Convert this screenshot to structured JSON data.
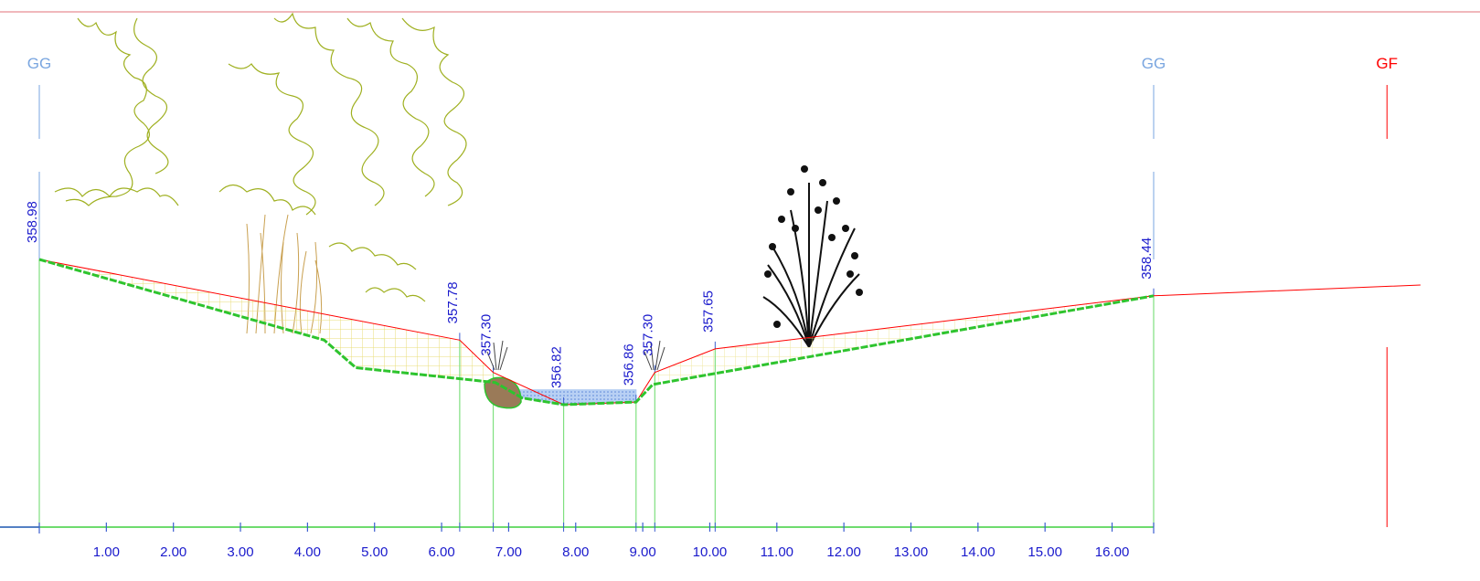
{
  "diagram": {
    "type": "river cross-section",
    "colors": {
      "frame_line": "#e0707a",
      "gg_marker": "#7aa6e0",
      "gf_marker": "#ff0000",
      "terrain_line": "#ff0000",
      "design_line": "#2ec42e",
      "station_lines": "#7fe07f",
      "elevation_text": "#1a1acc",
      "axis_text": "#1a1acc",
      "axis_line": "#3fcf3f",
      "water_fill": "#a9c6f0",
      "hatch": "#e8dc7a",
      "tree_outline": "#9fb020",
      "grass": "#c9a050",
      "shrub": "#111111",
      "rock": "#9a7a58"
    },
    "markers": [
      {
        "label": "GG",
        "station": 0.0,
        "color_key": "gg_marker"
      },
      {
        "label": "GG",
        "station": 16.62,
        "color_key": "gg_marker"
      },
      {
        "label": "GF",
        "station": 20.1,
        "color_key": "gf_marker"
      }
    ],
    "terrain_profile": [
      {
        "station": 0.0,
        "elevation": 358.98
      },
      {
        "station": 6.27,
        "elevation": 357.78
      },
      {
        "station": 6.77,
        "elevation": 357.3
      },
      {
        "station": 7.82,
        "elevation": 356.82
      },
      {
        "station": 8.9,
        "elevation": 356.86
      },
      {
        "station": 9.18,
        "elevation": 357.3
      },
      {
        "station": 10.08,
        "elevation": 357.65
      },
      {
        "station": 16.62,
        "elevation": 358.44
      },
      {
        "station": 20.6,
        "elevation": 358.6
      }
    ],
    "design_profile": [
      {
        "station": 0.0,
        "elevation": 358.98
      },
      {
        "station": 4.25,
        "elevation": 357.78
      },
      {
        "station": 4.72,
        "elevation": 357.37
      },
      {
        "station": 6.8,
        "elevation": 357.15
      },
      {
        "station": 7.2,
        "elevation": 356.92
      },
      {
        "station": 7.82,
        "elevation": 356.82
      },
      {
        "station": 8.9,
        "elevation": 356.86
      },
      {
        "station": 9.15,
        "elevation": 357.12
      },
      {
        "station": 16.62,
        "elevation": 358.44
      }
    ],
    "elevation_labels": [
      {
        "text": "358.98",
        "station": 0.0
      },
      {
        "text": "357.78",
        "station": 6.27
      },
      {
        "text": "357.30",
        "station": 6.77
      },
      {
        "text": "356.82",
        "station": 7.82
      },
      {
        "text": "356.86",
        "station": 8.9
      },
      {
        "text": "357.30",
        "station": 9.18
      },
      {
        "text": "357.65",
        "station": 10.08
      },
      {
        "text": "358.44",
        "station": 16.62
      }
    ],
    "x_axis": {
      "min": 0,
      "max": 16.62,
      "tick_labels": [
        "1.00",
        "2.00",
        "3.00",
        "4.00",
        "5.00",
        "6.00",
        "7.00",
        "8.00",
        "9.00",
        "10.00",
        "11.00",
        "12.00",
        "13.00",
        "14.00",
        "15.00",
        "16.00"
      ],
      "minor_tick_stations": [
        6.27,
        6.77,
        7.82,
        8.9,
        9.18,
        10.08
      ]
    },
    "water": {
      "from_station": 7.15,
      "to_station": 8.9,
      "surface_elevation": 357.04
    }
  }
}
